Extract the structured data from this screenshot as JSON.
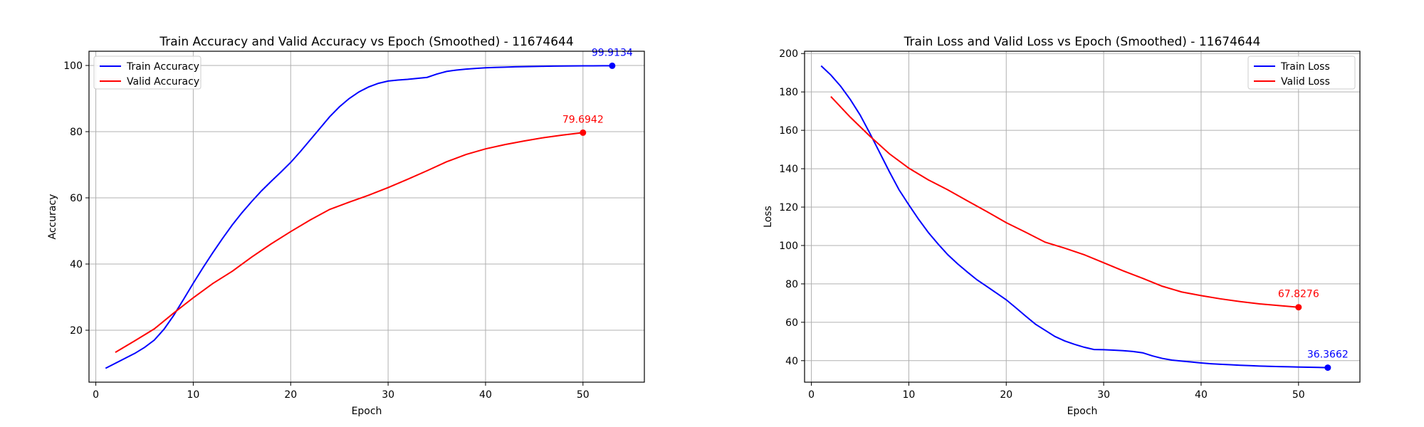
{
  "chart_data": [
    {
      "type": "line",
      "title": "Train Accuracy and Valid Accuracy vs Epoch (Smoothed) - 11674644",
      "xlabel": "Epoch",
      "ylabel": "Accuracy",
      "xlim": [
        -0.7,
        56.3
      ],
      "ylim": [
        4.3,
        104.3
      ],
      "xticks": [
        0,
        10,
        20,
        30,
        40,
        50
      ],
      "yticks": [
        20,
        40,
        60,
        80,
        100
      ],
      "grid": true,
      "legend": "top-left",
      "series": [
        {
          "name": "Train Accuracy",
          "color": "#0000ff",
          "x": [
            1,
            2,
            3,
            4,
            5,
            6,
            7,
            8,
            9,
            10,
            11,
            12,
            13,
            14,
            15,
            16,
            17,
            18,
            19,
            20,
            21,
            22,
            23,
            24,
            25,
            26,
            27,
            28,
            29,
            30,
            31,
            32,
            33,
            34,
            35,
            36,
            37,
            38,
            39,
            40,
            41,
            42,
            43,
            44,
            45,
            46,
            47,
            48,
            49,
            50,
            51,
            52,
            53
          ],
          "y": [
            8.5,
            10,
            11.5,
            13,
            14.8,
            17,
            20.3,
            24.5,
            29.3,
            34.2,
            38.9,
            43.4,
            47.7,
            51.8,
            55.5,
            58.9,
            62.1,
            65,
            67.8,
            70.7,
            74,
            77.5,
            81,
            84.5,
            87.5,
            90,
            92,
            93.5,
            94.6,
            95.3,
            95.6,
            95.8,
            96.1,
            96.4,
            97.4,
            98.2,
            98.6,
            98.9,
            99.1,
            99.3,
            99.4,
            99.5,
            99.6,
            99.65,
            99.7,
            99.75,
            99.8,
            99.83,
            99.86,
            99.88,
            99.9,
            99.91,
            99.9134
          ],
          "end_label": "99.9134"
        },
        {
          "name": "Valid Accuracy",
          "color": "#ff0000",
          "x": [
            2,
            4,
            6,
            8,
            10,
            12,
            14,
            16,
            18,
            20,
            22,
            24,
            26,
            28,
            30,
            32,
            34,
            36,
            38,
            40,
            42,
            44,
            46,
            48,
            50
          ],
          "y": [
            13.3,
            16.8,
            20.4,
            25.2,
            29.8,
            34.1,
            37.8,
            42.1,
            46.1,
            49.8,
            53.3,
            56.5,
            58.7,
            60.8,
            63.1,
            65.6,
            68.2,
            70.9,
            73.1,
            74.8,
            76.1,
            77.2,
            78.2,
            79,
            79.6942
          ],
          "end_label": "79.6942"
        }
      ]
    },
    {
      "type": "line",
      "title": "Train Loss and Valid Loss vs Epoch (Smoothed) - 11674644",
      "xlabel": "Epoch",
      "ylabel": "Loss",
      "xlim": [
        -0.7,
        56.3
      ],
      "ylim": [
        28.8,
        201.2
      ],
      "xticks": [
        0,
        10,
        20,
        30,
        40,
        50
      ],
      "yticks": [
        40,
        60,
        80,
        100,
        120,
        140,
        160,
        180,
        200
      ],
      "grid": true,
      "legend": "top-right",
      "series": [
        {
          "name": "Train Loss",
          "color": "#0000ff",
          "x": [
            1,
            2,
            3,
            4,
            5,
            6,
            7,
            8,
            9,
            10,
            11,
            12,
            13,
            14,
            15,
            16,
            17,
            18,
            19,
            20,
            21,
            22,
            23,
            24,
            25,
            26,
            27,
            28,
            29,
            30,
            31,
            32,
            33,
            34,
            35,
            36,
            37,
            38,
            39,
            40,
            41,
            42,
            43,
            44,
            45,
            46,
            47,
            48,
            49,
            50,
            51,
            52,
            53
          ],
          "y": [
            193.6,
            188.8,
            183,
            176,
            168,
            158.5,
            148.5,
            138.5,
            129,
            121.2,
            113.7,
            106.8,
            100.8,
            95.2,
            90.5,
            86.2,
            82.1,
            78.7,
            75.2,
            71.7,
            67.5,
            63.2,
            59,
            55.8,
            52.6,
            50.3,
            48.5,
            47,
            45.8,
            45.7,
            45.5,
            45.2,
            44.8,
            44.1,
            42.5,
            41.2,
            40.3,
            39.8,
            39.3,
            38.8,
            38.4,
            38.1,
            37.9,
            37.6,
            37.4,
            37.2,
            37.05,
            36.9,
            36.8,
            36.7,
            36.6,
            36.5,
            36.3662
          ],
          "end_label": "36.3662"
        },
        {
          "name": "Valid Loss",
          "color": "#ff0000",
          "x": [
            2,
            4,
            6,
            8,
            10,
            12,
            14,
            16,
            18,
            20,
            22,
            24,
            26,
            28,
            30,
            32,
            34,
            36,
            38,
            40,
            42,
            44,
            46,
            48,
            50
          ],
          "y": [
            177.6,
            166.8,
            157,
            147.8,
            140.3,
            134.2,
            129,
            123.3,
            117.7,
            111.9,
            106.9,
            101.7,
            98.6,
            95.2,
            91,
            86.8,
            82.9,
            78.8,
            75.8,
            73.9,
            72.2,
            70.8,
            69.6,
            68.7,
            67.8276
          ],
          "end_label": "67.8276"
        }
      ]
    }
  ]
}
